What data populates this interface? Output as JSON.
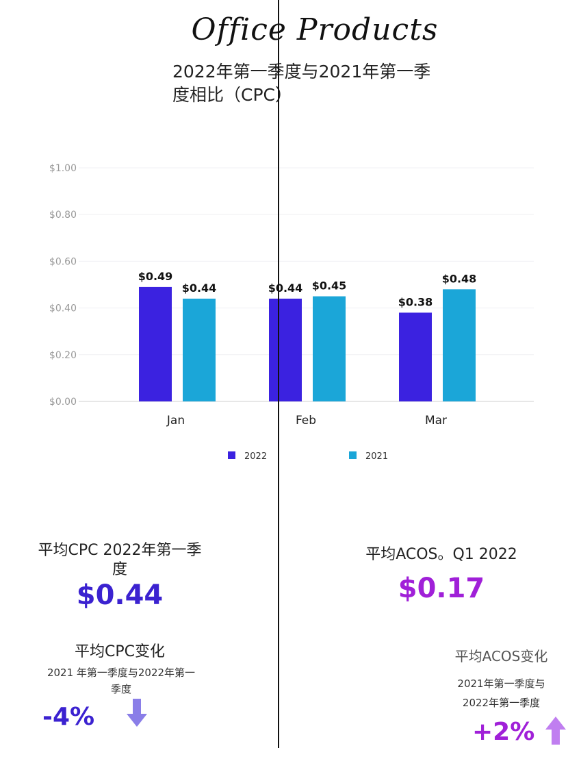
{
  "title": "Office Products",
  "subtitle": "2022年第一季度与2021年第一季度相比（CPC）",
  "chart_data": {
    "type": "bar",
    "title": "2022年第一季度与2021年第一季度相比（CPC）",
    "categories": [
      "Jan",
      "Feb",
      "Mar"
    ],
    "series": [
      {
        "name": "2022",
        "values": [
          0.49,
          0.44,
          0.38
        ],
        "color": "#3b22e0"
      },
      {
        "name": "2021",
        "values": [
          0.44,
          0.45,
          0.48
        ],
        "color": "#1ba6d8"
      }
    ],
    "data_labels": [
      [
        "$0.49",
        "$0.44",
        "$0.38"
      ],
      [
        "$0.44",
        "$0.45",
        "$0.48"
      ]
    ],
    "yticks": [
      "$0.00",
      "$0.20",
      "$0.40",
      "$0.60",
      "$0.80",
      "$1.00"
    ],
    "ylim": [
      0,
      1.0
    ],
    "grid": true,
    "legend": "bottom",
    "xlabel": "",
    "ylabel": ""
  },
  "stats": {
    "avg_cpc_label": "平均CPC 2022年第一季度",
    "avg_cpc_value": "$0.44",
    "avg_acos_label": "平均ACOS。Q1 2022",
    "avg_acos_value": "$0.17",
    "cpc_change_label": "平均CPC变化",
    "cpc_change_sub": "2021 年第一季度与2022年第一季度",
    "cpc_change_value": "-4%",
    "cpc_change_icon": "arrow-down-icon",
    "acos_change_label": "平均ACOS变化",
    "acos_change_sub": "2021年第一季度与2022年第一季度",
    "acos_change_value": "+2%",
    "acos_change_icon": "arrow-up-icon",
    "cpc_color": "#3b22d0",
    "acos_color": "#a020d8"
  }
}
